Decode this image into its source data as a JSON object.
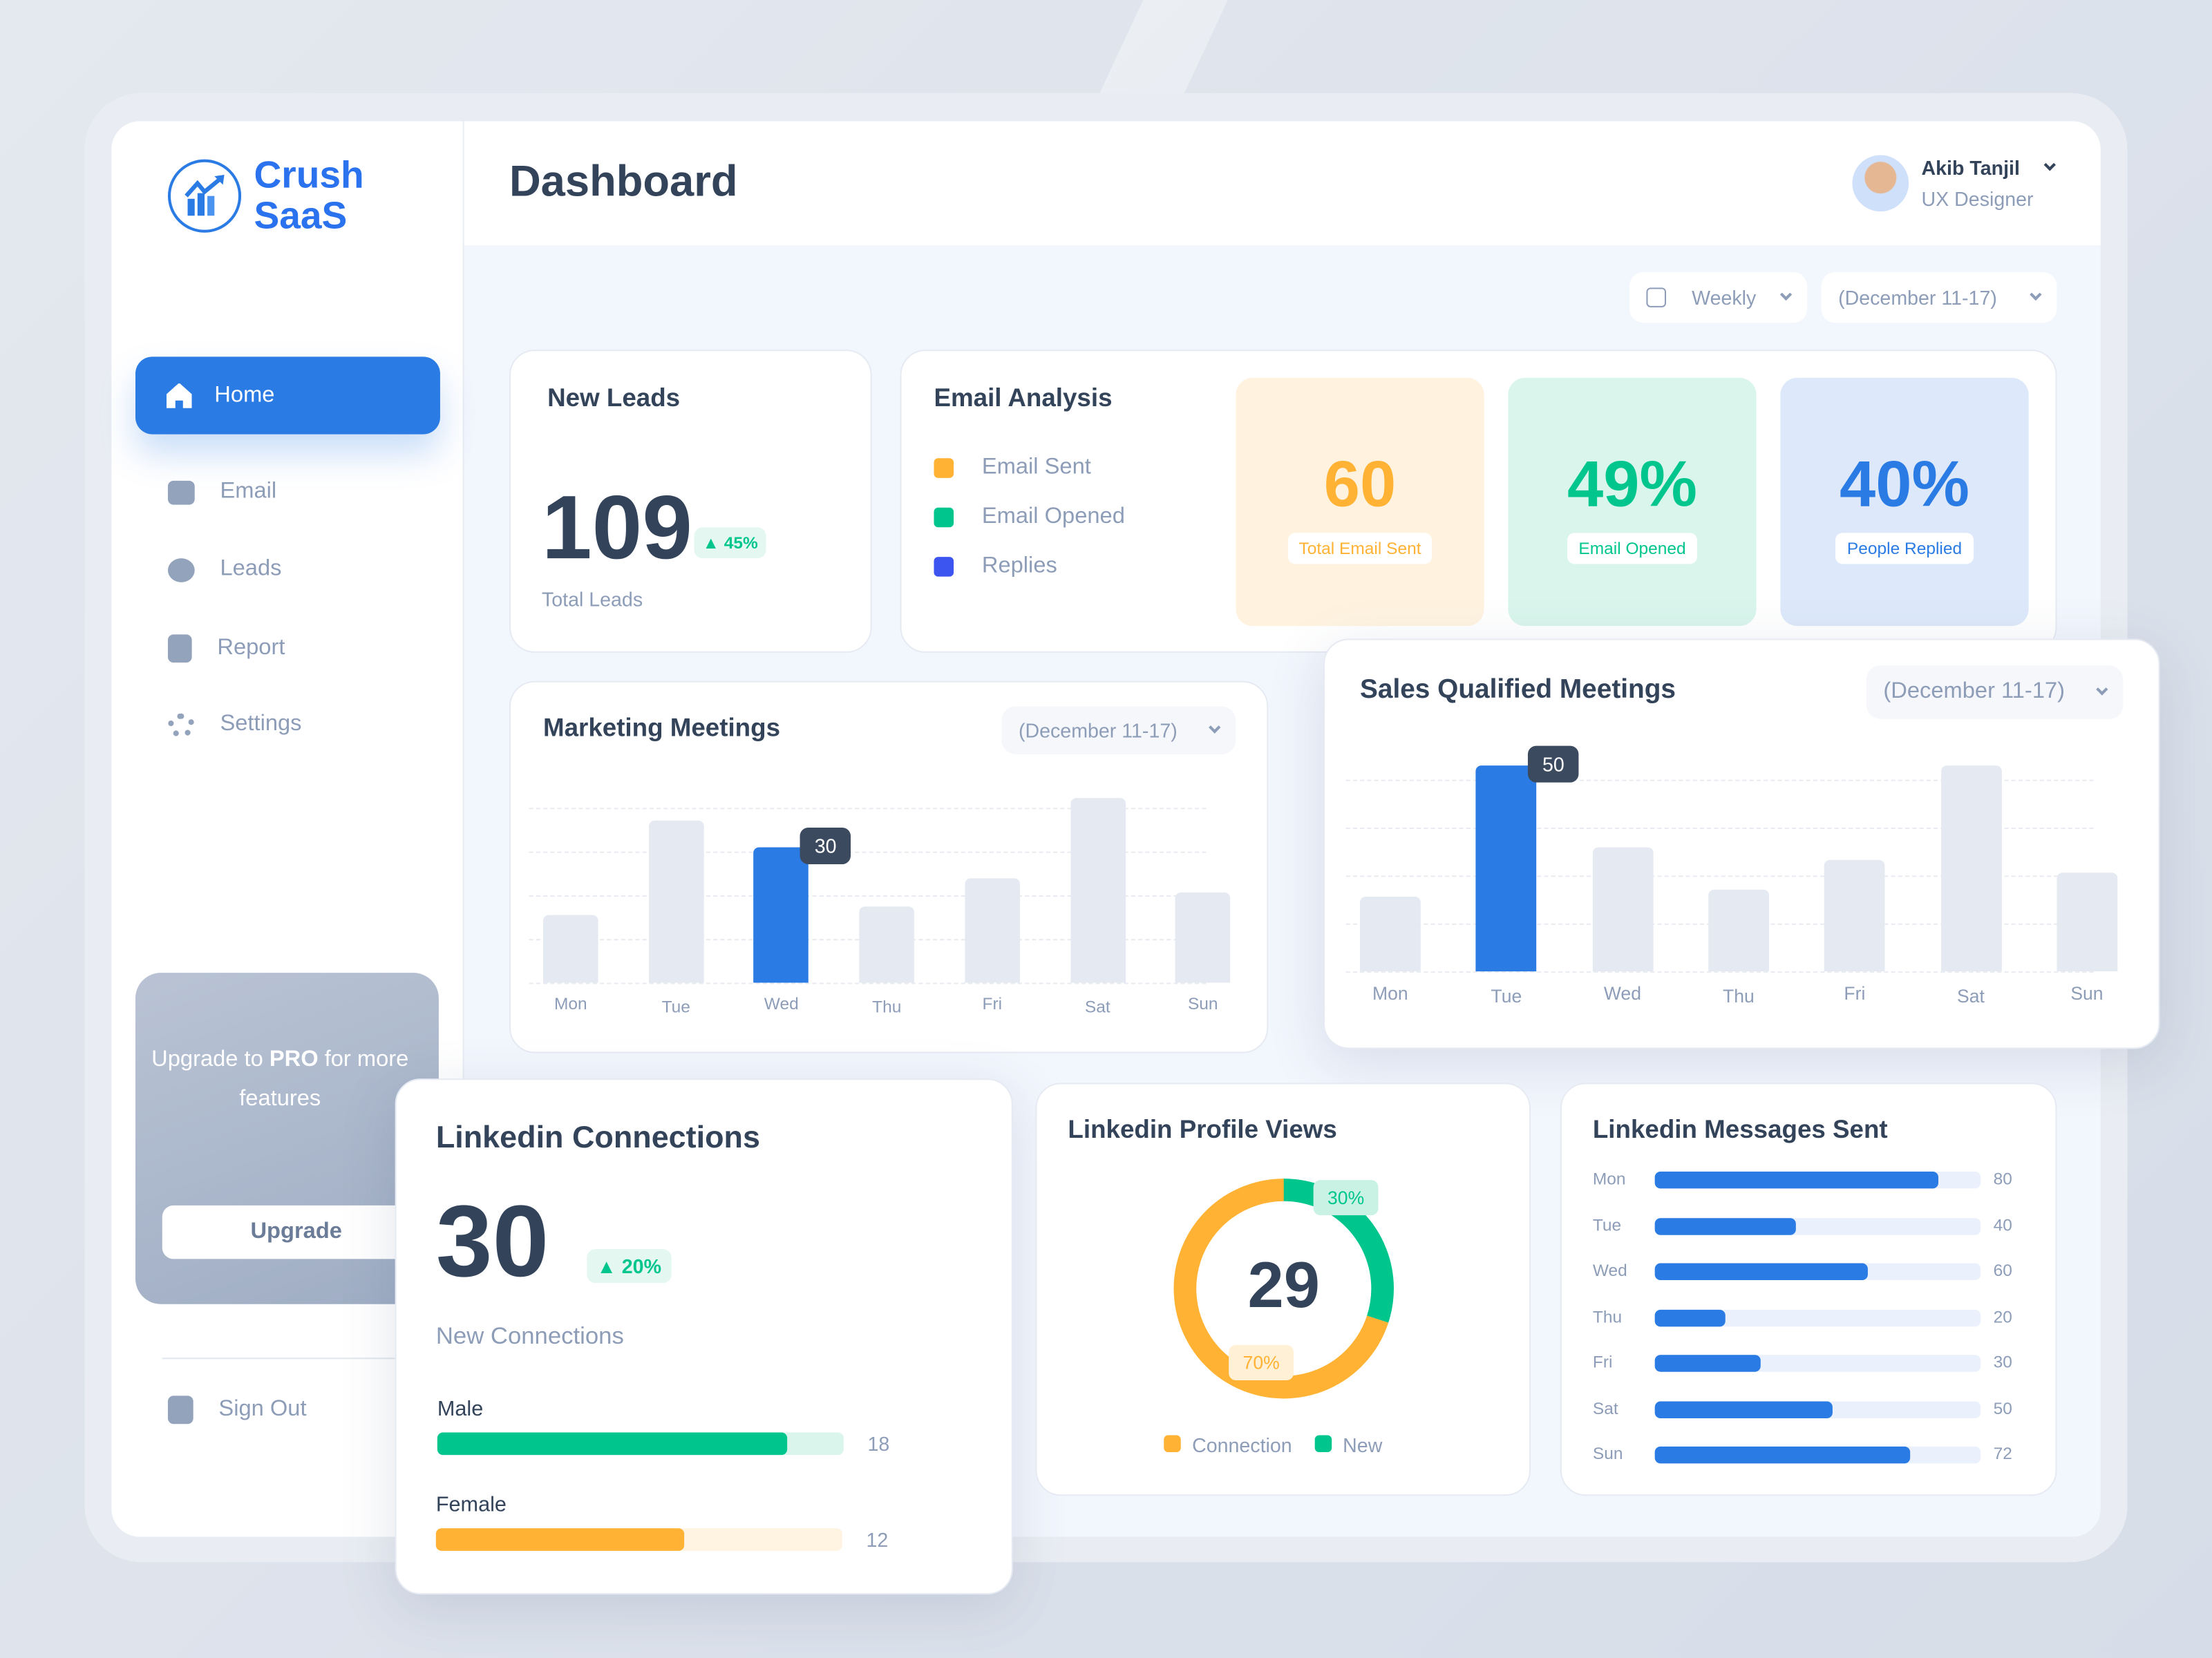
{
  "brand": {
    "name_line1": "Crush",
    "name_line2": "SaaS"
  },
  "header": {
    "title": "Dashboard",
    "user_name": "Akib Tanjil",
    "user_role": "UX Designer"
  },
  "sidebar": {
    "items": [
      {
        "label": "Home",
        "icon": "home-icon",
        "active": true
      },
      {
        "label": "Email",
        "icon": "email-icon"
      },
      {
        "label": "Leads",
        "icon": "users-icon"
      },
      {
        "label": "Report",
        "icon": "report-icon"
      },
      {
        "label": "Settings",
        "icon": "gear-icon"
      }
    ],
    "upgrade": {
      "text_pre": "Upgrade to ",
      "text_bold": "PRO",
      "text_post": " for more features",
      "button": "Upgrade"
    },
    "sign_out": "Sign Out"
  },
  "filters": {
    "period": "Weekly",
    "range": "(December 11-17)"
  },
  "new_leads": {
    "title": "New Leads",
    "value": "109",
    "change": "45%",
    "caption": "Total Leads"
  },
  "email_analysis": {
    "title": "Email Analysis",
    "legend": [
      {
        "label": "Email Sent",
        "color": "#ffb233"
      },
      {
        "label": "Email Opened",
        "color": "#00c68e"
      },
      {
        "label": "Replies",
        "color": "#3d55f0"
      }
    ],
    "stats": [
      {
        "value": "60",
        "label": "Total Email Sent",
        "color": "#ffb233",
        "bg": "#fff3e0"
      },
      {
        "value": "49%",
        "label": "Email Opened",
        "color": "#00c68e",
        "bg": "#d9f5ec"
      },
      {
        "value": "40%",
        "label": "People Replied",
        "color": "#2b7be4",
        "bg": "#dde9fa"
      }
    ]
  },
  "chart_data": [
    {
      "type": "bar",
      "title": "Marketing Meetings",
      "range": "(December 11-17)",
      "categories": [
        "Mon",
        "Tue",
        "Wed",
        "Thu",
        "Fri",
        "Sat",
        "Sun"
      ],
      "values": [
        15,
        36,
        30,
        17,
        23,
        41,
        20
      ],
      "highlight": "Wed",
      "highlight_label": "30",
      "highlight_color": "#2b7be4",
      "grid": true
    },
    {
      "type": "bar",
      "title": "Sales Qualified Meetings",
      "range": "(December 11-17)",
      "categories": [
        "Mon",
        "Tue",
        "Wed",
        "Thu",
        "Fri",
        "Sat",
        "Sun"
      ],
      "values": [
        18,
        50,
        30,
        20,
        27,
        50,
        24
      ],
      "highlight": "Tue",
      "highlight_label": "50",
      "highlight_color": "#2b7be4",
      "grid": true
    },
    {
      "type": "pie",
      "title": "Linkedin Profile Views",
      "center_value": "29",
      "slices": [
        {
          "name": "Connection",
          "value": 70,
          "label": "70%",
          "color": "#ffb233"
        },
        {
          "name": "New",
          "value": 30,
          "label": "30%",
          "color": "#00c68e"
        }
      ]
    },
    {
      "type": "bar",
      "orientation": "horizontal",
      "title": "Linkedin Messages Sent",
      "categories": [
        "Mon",
        "Tue",
        "Wed",
        "Thu",
        "Fri",
        "Sat",
        "Sun"
      ],
      "values": [
        80,
        40,
        60,
        20,
        30,
        50,
        72
      ],
      "color": "#2b7be4"
    }
  ],
  "linkedin_connections": {
    "title": "Linkedin Connections",
    "value": "30",
    "change": "20%",
    "caption": "New Connections",
    "rows": [
      {
        "label": "Male",
        "value": "18",
        "fraction": 0.86,
        "color": "#00c68e",
        "track": "#daf5ec"
      },
      {
        "label": "Female",
        "value": "12",
        "fraction": 0.61,
        "color": "#ffb233",
        "track": "#fff3e2"
      }
    ]
  }
}
